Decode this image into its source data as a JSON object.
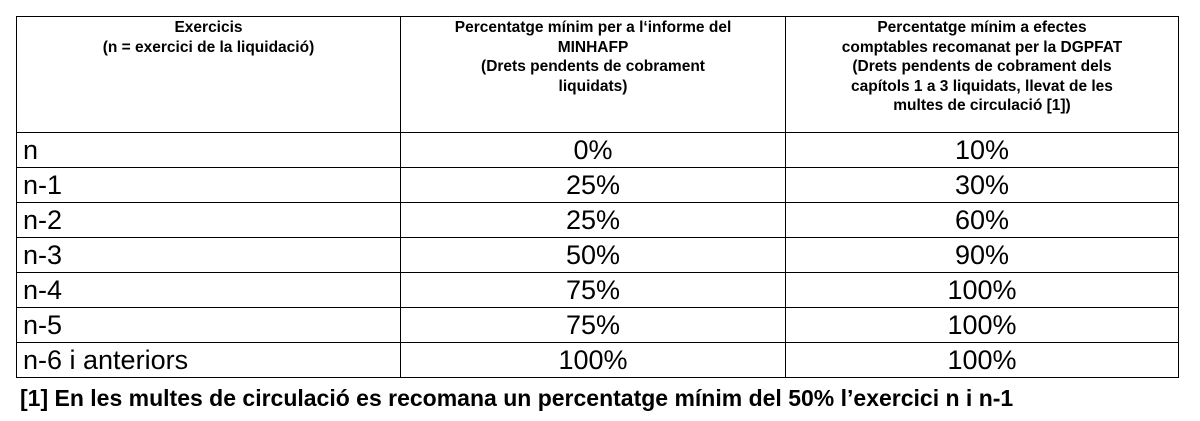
{
  "table": {
    "headers": [
      {
        "lines": [
          "Exercicis",
          "(n = exercici de la liquidació)"
        ]
      },
      {
        "lines": [
          "Percentatge mínim per a l‘informe del",
          "MINHAFP",
          "(Drets pendents de cobrament",
          "liquidats)"
        ]
      },
      {
        "lines": [
          "Percentatge mínim a efectes",
          "comptables recomanat per la DGPFAT",
          "(Drets pendents de cobrament dels",
          "capítols 1 a 3 liquidats, llevat de les",
          "multes de circulació [1])"
        ]
      }
    ],
    "rows": [
      {
        "period": "n",
        "minhafp": "0%",
        "dgpfat": "10%"
      },
      {
        "period": "n-1",
        "minhafp": "25%",
        "dgpfat": "30%"
      },
      {
        "period": "n-2",
        "minhafp": "25%",
        "dgpfat": "60%"
      },
      {
        "period": "n-3",
        "minhafp": "50%",
        "dgpfat": "90%"
      },
      {
        "period": "n-4",
        "minhafp": "75%",
        "dgpfat": "100%"
      },
      {
        "period": "n-5",
        "minhafp": "75%",
        "dgpfat": "100%"
      },
      {
        "period": "n-6 i anteriors",
        "minhafp": "100%",
        "dgpfat": "100%"
      }
    ]
  },
  "footnote": "[1] En les multes de circulació es recomana un percentatge mínim del 50% l’exercici n i n-1"
}
